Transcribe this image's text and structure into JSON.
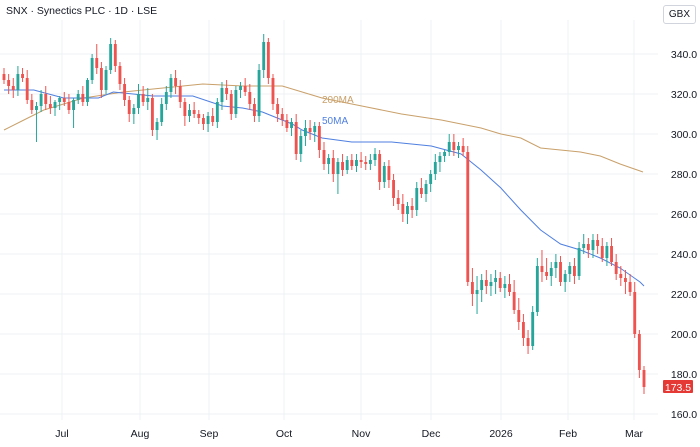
{
  "header": {
    "title": "SNX · Synectics PLC · 1D · LSE",
    "currency": "GBX"
  },
  "colors": {
    "up": "#26a69a",
    "down": "#ef5350",
    "ma50": "#2962ff",
    "ma200": "#d4a373",
    "grid": "#eef0f3",
    "last_price_bg": "#e53935"
  },
  "chart_data": {
    "type": "candlestick",
    "series": [
      {
        "name": "50MA",
        "color": "#4f7fe0"
      },
      {
        "name": "200MA",
        "color": "#c9a06a"
      }
    ],
    "y_axis": {
      "ylim": [
        157,
        357
      ],
      "ticks": [
        160,
        180,
        200,
        220,
        240,
        260,
        280,
        300,
        320,
        340
      ]
    },
    "x_axis": {
      "ticks": [
        "Jul",
        "Aug",
        "Sep",
        "Oct",
        "Nov",
        "Dec",
        "2026",
        "Feb",
        "Mar"
      ]
    },
    "last_price": "173.5",
    "ma50": [
      [
        0,
        322
      ],
      [
        30,
        322
      ],
      [
        60,
        318
      ],
      [
        95,
        318
      ],
      [
        110,
        321
      ],
      [
        150,
        319
      ],
      [
        190,
        319
      ],
      [
        220,
        314
      ],
      [
        240,
        313
      ],
      [
        260,
        311
      ],
      [
        270,
        309
      ],
      [
        290,
        305
      ],
      [
        300,
        302
      ],
      [
        320,
        298
      ],
      [
        350,
        296
      ],
      [
        390,
        296
      ],
      [
        430,
        294
      ],
      [
        460,
        290
      ],
      [
        480,
        282
      ],
      [
        500,
        273
      ],
      [
        520,
        262
      ],
      [
        540,
        252
      ],
      [
        560,
        245
      ],
      [
        580,
        242
      ],
      [
        600,
        238
      ],
      [
        620,
        233
      ],
      [
        640,
        226
      ],
      [
        644,
        224
      ]
    ],
    "ma200": [
      [
        0,
        302
      ],
      [
        20,
        307
      ],
      [
        40,
        312
      ],
      [
        80,
        318
      ],
      [
        120,
        321
      ],
      [
        160,
        323
      ],
      [
        200,
        325
      ],
      [
        240,
        324
      ],
      [
        280,
        324
      ],
      [
        320,
        318
      ],
      [
        360,
        314
      ],
      [
        400,
        310
      ],
      [
        440,
        307
      ],
      [
        480,
        303
      ],
      [
        500,
        300
      ],
      [
        520,
        298
      ],
      [
        540,
        293
      ],
      [
        560,
        292
      ],
      [
        580,
        291
      ],
      [
        600,
        289
      ],
      [
        620,
        285
      ],
      [
        643,
        281
      ]
    ],
    "candles": [
      [
        330,
        333,
        325,
        327
      ],
      [
        327,
        330,
        320,
        324
      ],
      [
        324,
        328,
        318,
        322
      ],
      [
        322,
        334,
        319,
        330
      ],
      [
        330,
        333,
        326,
        328
      ],
      [
        328,
        332,
        315,
        317
      ],
      [
        317,
        320,
        310,
        312
      ],
      [
        312,
        316,
        296,
        314
      ],
      [
        314,
        322,
        311,
        320
      ],
      [
        320,
        324,
        312,
        315
      ],
      [
        315,
        319,
        310,
        313
      ],
      [
        313,
        317,
        309,
        316
      ],
      [
        316,
        319,
        312,
        318
      ],
      [
        318,
        321,
        314,
        316
      ],
      [
        316,
        320,
        310,
        312
      ],
      [
        312,
        318,
        303,
        317
      ],
      [
        317,
        322,
        315,
        320
      ],
      [
        320,
        324,
        314,
        316
      ],
      [
        316,
        328,
        314,
        327
      ],
      [
        327,
        340,
        325,
        338
      ],
      [
        338,
        345,
        330,
        333
      ],
      [
        333,
        336,
        318,
        322
      ],
      [
        322,
        334,
        320,
        332
      ],
      [
        332,
        348,
        330,
        345
      ],
      [
        345,
        347,
        331,
        334
      ],
      [
        334,
        336,
        322,
        325
      ],
      [
        325,
        328,
        314,
        317
      ],
      [
        317,
        319,
        306,
        310
      ],
      [
        310,
        315,
        305,
        313
      ],
      [
        313,
        325,
        310,
        320
      ],
      [
        320,
        324,
        314,
        316
      ],
      [
        316,
        323,
        312,
        318
      ],
      [
        318,
        320,
        299,
        302
      ],
      [
        302,
        308,
        297,
        306
      ],
      [
        306,
        318,
        304,
        315
      ],
      [
        315,
        324,
        312,
        321
      ],
      [
        321,
        330,
        318,
        328
      ],
      [
        328,
        332,
        320,
        324
      ],
      [
        324,
        327,
        313,
        316
      ],
      [
        316,
        318,
        304,
        309
      ],
      [
        309,
        315,
        306,
        312
      ],
      [
        312,
        316,
        308,
        310
      ],
      [
        310,
        312,
        305,
        308
      ],
      [
        308,
        310,
        302,
        305
      ],
      [
        305,
        311,
        301,
        309
      ],
      [
        309,
        313,
        304,
        306
      ],
      [
        306,
        318,
        303,
        316
      ],
      [
        316,
        326,
        312,
        323
      ],
      [
        323,
        327,
        317,
        320
      ],
      [
        320,
        322,
        307,
        310
      ],
      [
        310,
        324,
        308,
        322
      ],
      [
        322,
        326,
        318,
        324
      ],
      [
        324,
        328,
        319,
        321
      ],
      [
        321,
        325,
        312,
        315
      ],
      [
        315,
        318,
        306,
        309
      ],
      [
        309,
        335,
        306,
        332
      ],
      [
        332,
        350,
        328,
        346
      ],
      [
        346,
        348,
        325,
        328
      ],
      [
        328,
        330,
        312,
        315
      ],
      [
        315,
        318,
        306,
        310
      ],
      [
        310,
        313,
        304,
        307
      ],
      [
        307,
        310,
        301,
        303
      ],
      [
        303,
        308,
        299,
        306
      ],
      [
        306,
        310,
        287,
        290
      ],
      [
        290,
        302,
        286,
        299
      ],
      [
        299,
        307,
        294,
        303
      ],
      [
        303,
        307,
        297,
        301
      ],
      [
        301,
        306,
        296,
        304
      ],
      [
        304,
        306,
        288,
        292
      ],
      [
        292,
        296,
        282,
        285
      ],
      [
        285,
        290,
        280,
        288
      ],
      [
        288,
        292,
        276,
        280
      ],
      [
        280,
        288,
        270,
        286
      ],
      [
        286,
        290,
        279,
        282
      ],
      [
        282,
        289,
        280,
        287
      ],
      [
        287,
        290,
        282,
        284
      ],
      [
        284,
        290,
        281,
        287
      ],
      [
        287,
        291,
        283,
        286
      ],
      [
        286,
        289,
        282,
        285
      ],
      [
        285,
        290,
        282,
        287
      ],
      [
        287,
        293,
        284,
        290
      ],
      [
        290,
        292,
        272,
        276
      ],
      [
        276,
        286,
        273,
        284
      ],
      [
        284,
        287,
        273,
        277
      ],
      [
        277,
        280,
        264,
        268
      ],
      [
        268,
        272,
        262,
        265
      ],
      [
        265,
        270,
        256,
        260
      ],
      [
        260,
        266,
        255,
        264
      ],
      [
        264,
        268,
        258,
        262
      ],
      [
        262,
        276,
        259,
        273
      ],
      [
        273,
        278,
        268,
        270
      ],
      [
        270,
        277,
        266,
        275
      ],
      [
        275,
        282,
        271,
        280
      ],
      [
        280,
        290,
        277,
        286
      ],
      [
        286,
        291,
        281,
        289
      ],
      [
        289,
        292,
        286,
        291
      ],
      [
        291,
        300,
        289,
        296
      ],
      [
        296,
        300,
        289,
        292
      ],
      [
        292,
        296,
        288,
        294
      ],
      [
        294,
        298,
        289,
        291
      ],
      [
        291,
        294,
        224,
        226
      ],
      [
        226,
        233,
        214,
        220
      ],
      [
        220,
        229,
        210,
        222
      ],
      [
        222,
        230,
        216,
        227
      ],
      [
        227,
        232,
        220,
        224
      ],
      [
        224,
        230,
        219,
        226
      ],
      [
        226,
        232,
        220,
        228
      ],
      [
        228,
        231,
        221,
        223
      ],
      [
        223,
        229,
        218,
        225
      ],
      [
        225,
        230,
        219,
        221
      ],
      [
        221,
        227,
        210,
        212
      ],
      [
        212,
        218,
        202,
        206
      ],
      [
        206,
        210,
        194,
        198
      ],
      [
        198,
        202,
        190,
        194
      ],
      [
        194,
        214,
        192,
        211
      ],
      [
        211,
        238,
        209,
        234
      ],
      [
        234,
        242,
        226,
        231
      ],
      [
        231,
        238,
        227,
        229
      ],
      [
        229,
        236,
        224,
        233
      ],
      [
        233,
        240,
        228,
        236
      ],
      [
        236,
        239,
        224,
        226
      ],
      [
        226,
        232,
        221,
        230
      ],
      [
        230,
        236,
        226,
        234
      ],
      [
        234,
        238,
        225,
        229
      ],
      [
        229,
        246,
        227,
        243
      ],
      [
        243,
        250,
        240,
        245
      ],
      [
        245,
        248,
        238,
        242
      ],
      [
        242,
        250,
        238,
        247
      ],
      [
        247,
        250,
        240,
        244
      ],
      [
        244,
        248,
        236,
        238
      ],
      [
        238,
        246,
        234,
        244
      ],
      [
        244,
        248,
        234,
        236
      ],
      [
        236,
        240,
        227,
        230
      ],
      [
        230,
        234,
        224,
        228
      ],
      [
        228,
        232,
        220,
        226
      ],
      [
        226,
        230,
        219,
        221
      ],
      [
        221,
        226,
        198,
        200
      ],
      [
        200,
        202,
        178,
        182
      ],
      [
        182,
        184,
        170,
        173.5
      ]
    ]
  }
}
